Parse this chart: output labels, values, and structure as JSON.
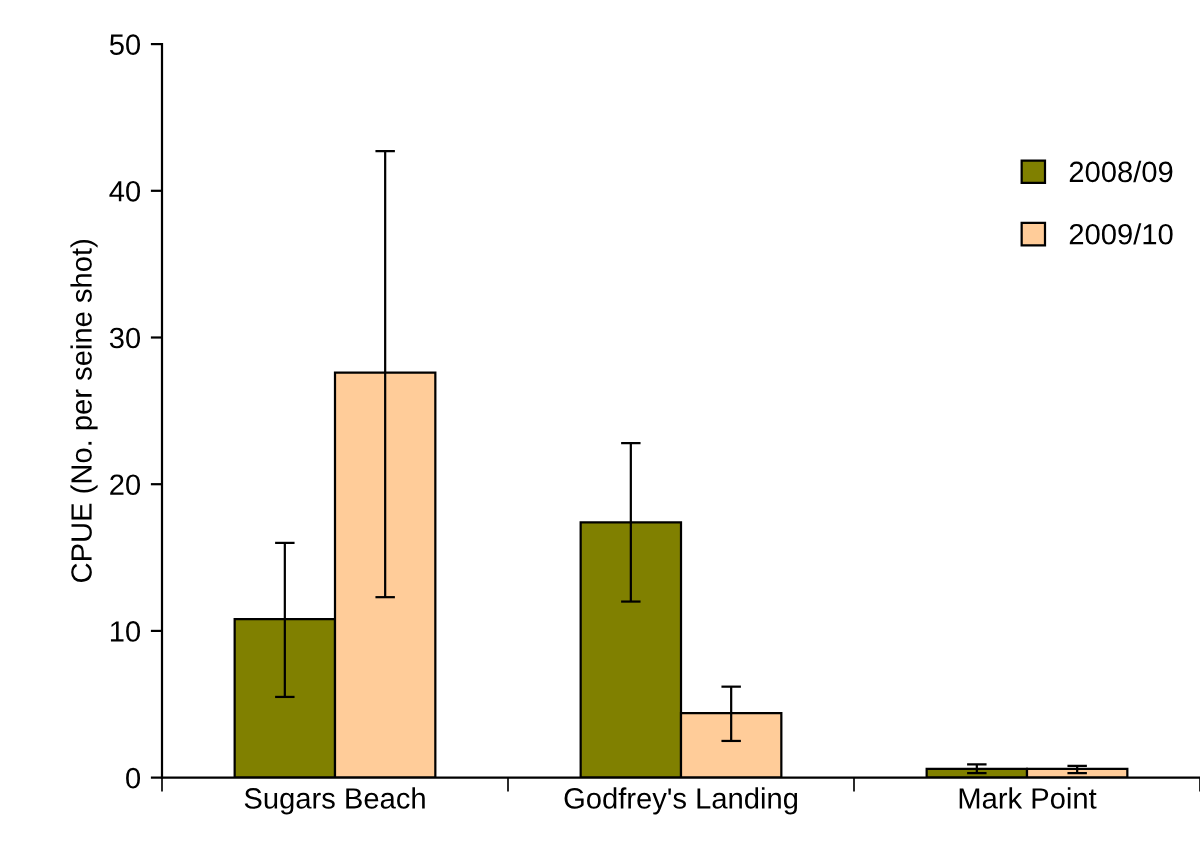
{
  "chart_data": {
    "type": "bar",
    "ylabel": "CPUE (No. per seine shot)",
    "categories": [
      "Sugars Beach",
      "Godfrey's Landing",
      "Mark Point"
    ],
    "series": [
      {
        "name": "2008/09",
        "color": "#808000",
        "values": [
          10.8,
          17.4,
          0.6
        ],
        "errors": [
          [
            5.5,
            16.0
          ],
          [
            12.0,
            22.8
          ],
          [
            0.3,
            0.9
          ]
        ]
      },
      {
        "name": "2009/10",
        "color": "#ffcc99",
        "values": [
          27.6,
          4.4,
          0.6
        ],
        "errors": [
          [
            12.3,
            42.7
          ],
          [
            2.5,
            6.2
          ],
          [
            0.3,
            0.8
          ]
        ]
      }
    ],
    "ylim": [
      0,
      50
    ],
    "yticks": [
      0,
      10,
      20,
      30,
      40,
      50
    ],
    "grid": false,
    "legend": "right"
  }
}
